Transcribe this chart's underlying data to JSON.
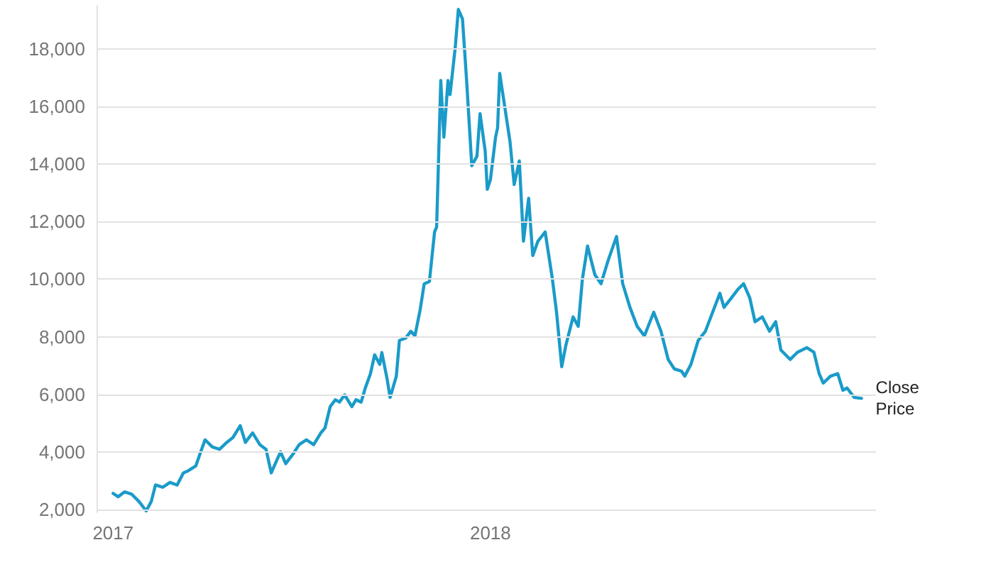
{
  "chart_data": {
    "type": "line",
    "xlim": [
      "2016-12-16",
      "2019-01-09"
    ],
    "xticks": [
      {
        "value": "2017-01-01",
        "label": "2017"
      },
      {
        "value": "2018-01-01",
        "label": "2018"
      }
    ],
    "ylim": [
      1900,
      19500
    ],
    "yticks": [
      {
        "value": 2000,
        "label": "2,000"
      },
      {
        "value": 4000,
        "label": "4,000"
      },
      {
        "value": 6000,
        "label": "6,000"
      },
      {
        "value": 8000,
        "label": "8,000"
      },
      {
        "value": 10000,
        "label": "10,000"
      },
      {
        "value": 12000,
        "label": "12,000"
      },
      {
        "value": 14000,
        "label": "14,000"
      },
      {
        "value": 16000,
        "label": "16,000"
      },
      {
        "value": 18000,
        "label": "18,000"
      }
    ],
    "grid": "y",
    "legend": false,
    "marker": "none",
    "line_style": "solid",
    "series": [
      {
        "name": "Close Price",
        "color": "#1a9bc9",
        "x": [
          "2017-01-01",
          "2017-01-06",
          "2017-01-12",
          "2017-01-19",
          "2017-01-26",
          "2017-02-02",
          "2017-02-07",
          "2017-02-11",
          "2017-02-18",
          "2017-02-25",
          "2017-03-04",
          "2017-03-10",
          "2017-03-15",
          "2017-03-22",
          "2017-03-26",
          "2017-03-31",
          "2017-04-07",
          "2017-04-14",
          "2017-04-21",
          "2017-04-27",
          "2017-05-04",
          "2017-05-09",
          "2017-05-16",
          "2017-05-23",
          "2017-05-29",
          "2017-06-03",
          "2017-06-08",
          "2017-06-12",
          "2017-06-17",
          "2017-06-24",
          "2017-06-30",
          "2017-07-07",
          "2017-07-14",
          "2017-07-21",
          "2017-07-25",
          "2017-07-30",
          "2017-08-04",
          "2017-08-08",
          "2017-08-13",
          "2017-08-20",
          "2017-08-24",
          "2017-08-29",
          "2017-09-02",
          "2017-09-07",
          "2017-09-11",
          "2017-09-16",
          "2017-09-18",
          "2017-09-23",
          "2017-09-26",
          "2017-10-02",
          "2017-10-05",
          "2017-10-11",
          "2017-10-16",
          "2017-10-20",
          "2017-10-25",
          "2017-10-29",
          "2017-11-03",
          "2017-11-08",
          "2017-11-10",
          "2017-11-14",
          "2017-11-17",
          "2017-11-21",
          "2017-11-23",
          "2017-11-28",
          "2017-12-01",
          "2017-12-05",
          "2017-12-09",
          "2017-12-14",
          "2017-12-19",
          "2017-12-22",
          "2017-12-27",
          "2017-12-29",
          "2018-01-01",
          "2018-01-06",
          "2018-01-08",
          "2018-01-10",
          "2018-01-20",
          "2018-01-24",
          "2018-01-29",
          "2018-02-02",
          "2018-02-07",
          "2018-02-11",
          "2018-02-16",
          "2018-02-23",
          "2018-03-02",
          "2018-03-06",
          "2018-03-11",
          "2018-03-15",
          "2018-03-22",
          "2018-03-27",
          "2018-03-31",
          "2018-04-05",
          "2018-04-12",
          "2018-04-18",
          "2018-04-25",
          "2018-05-03",
          "2018-05-09",
          "2018-05-16",
          "2018-05-23",
          "2018-05-30",
          "2018-06-08",
          "2018-06-15",
          "2018-06-22",
          "2018-06-28",
          "2018-07-05",
          "2018-07-08",
          "2018-07-14",
          "2018-07-21",
          "2018-07-28",
          "2018-08-04",
          "2018-08-11",
          "2018-08-15",
          "2018-08-22",
          "2018-08-29",
          "2018-09-03",
          "2018-09-09",
          "2018-09-14",
          "2018-09-21",
          "2018-09-28",
          "2018-10-04",
          "2018-10-09",
          "2018-10-18",
          "2018-10-25",
          "2018-11-03",
          "2018-11-10",
          "2018-11-15",
          "2018-11-19",
          "2018-11-26",
          "2018-12-03",
          "2018-12-08",
          "2018-12-12",
          "2018-12-19",
          "2018-12-26"
        ],
        "values": [
          2560,
          2440,
          2610,
          2530,
          2280,
          1950,
          2280,
          2850,
          2770,
          2940,
          2850,
          3270,
          3350,
          3510,
          3920,
          4420,
          4170,
          4090,
          4330,
          4500,
          4910,
          4330,
          4660,
          4250,
          4090,
          3270,
          3680,
          4000,
          3590,
          3920,
          4250,
          4420,
          4250,
          4660,
          4830,
          5570,
          5810,
          5730,
          5980,
          5570,
          5810,
          5730,
          6220,
          6720,
          7370,
          7040,
          7450,
          6550,
          5890,
          6630,
          7870,
          7950,
          8190,
          8030,
          8930,
          9840,
          9920,
          11640,
          11810,
          16900,
          14930,
          16900,
          16410,
          18050,
          19370,
          19040,
          16900,
          13940,
          14270,
          15750,
          14440,
          13120,
          13450,
          14930,
          15260,
          17150,
          14770,
          13290,
          14110,
          11320,
          12810,
          10820,
          11320,
          11640,
          10000,
          8850,
          6960,
          7700,
          8690,
          8360,
          10000,
          11150,
          10160,
          9840,
          10660,
          11480,
          9840,
          9020,
          8360,
          8030,
          8850,
          8190,
          7210,
          6880,
          6800,
          6630,
          7040,
          7870,
          8190,
          8850,
          9510,
          9020,
          9340,
          9670,
          9840,
          9340,
          8520,
          8690,
          8190,
          8520,
          7540,
          7210,
          7460,
          7620,
          7460,
          6720,
          6390,
          6630,
          6720,
          6140,
          6220,
          5890,
          5860
        ]
      }
    ]
  }
}
